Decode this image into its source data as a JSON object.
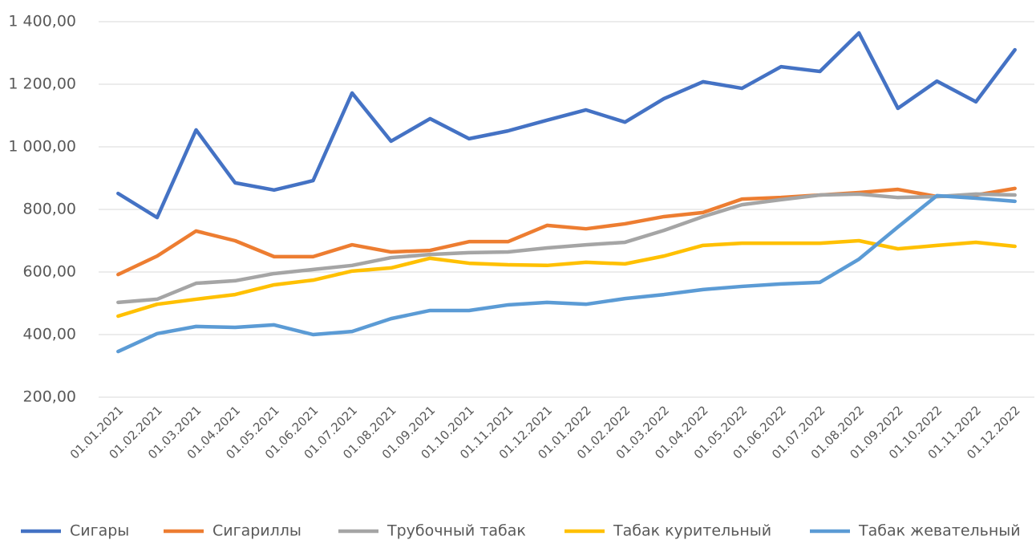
{
  "chart_data": {
    "type": "line",
    "categories": [
      "01.01.2021",
      "01.02.2021",
      "01.03.2021",
      "01.04.2021",
      "01.05.2021",
      "01.06.2021",
      "01.07.2021",
      "01.08.2021",
      "01.09.2021",
      "01.10.2021",
      "01.11.2021",
      "01.12.2021",
      "01.01.2022",
      "01.02.2022",
      "01.03.2022",
      "01.04.2022",
      "01.05.2022",
      "01.06.2022",
      "01.07.2022",
      "01.08.2022",
      "01.09.2022",
      "01.10.2022",
      "01.11.2022",
      "01.12.2022"
    ],
    "series": [
      {
        "name": "Сигары",
        "color": "#4472c4",
        "values": [
          851,
          774,
          1054,
          885,
          862,
          892,
          1172,
          1018,
          1090,
          1026,
          1051,
          1085,
          1118,
          1079,
          1154,
          1208,
          1187,
          1256,
          1241,
          1364,
          1123,
          1210,
          1144,
          1310
        ]
      },
      {
        "name": "Сигариллы",
        "color": "#ed7d31",
        "values": [
          592,
          651,
          731,
          700,
          649,
          649,
          687,
          664,
          669,
          697,
          697,
          749,
          738,
          754,
          777,
          790,
          833,
          838,
          846,
          854,
          864,
          841,
          846,
          867
        ]
      },
      {
        "name": "Трубочный табак",
        "color": "#a5a5a5",
        "values": [
          503,
          513,
          564,
          572,
          595,
          608,
          621,
          646,
          656,
          662,
          664,
          677,
          687,
          695,
          733,
          777,
          815,
          831,
          846,
          849,
          838,
          841,
          849,
          846
        ]
      },
      {
        "name": "Табак курительный",
        "color": "#ffc000",
        "values": [
          459,
          497,
          513,
          528,
          559,
          574,
          603,
          613,
          644,
          628,
          623,
          621,
          631,
          626,
          651,
          685,
          692,
          692,
          692,
          700,
          674,
          685,
          695,
          682
        ]
      },
      {
        "name": "Табак жевательный",
        "color": "#5b9bd5",
        "values": [
          346,
          403,
          426,
          423,
          431,
          400,
          410,
          451,
          477,
          477,
          495,
          503,
          497,
          515,
          528,
          544,
          554,
          562,
          567,
          641,
          744,
          844,
          836,
          826
        ]
      }
    ],
    "ylim": [
      200,
      1400
    ],
    "yticks": [
      {
        "value": 200,
        "label": "200,00"
      },
      {
        "value": 400,
        "label": "400,00"
      },
      {
        "value": 600,
        "label": "600,00"
      },
      {
        "value": 800,
        "label": "800,00"
      },
      {
        "value": 1000,
        "label": "1 000,00"
      },
      {
        "value": 1200,
        "label": "1 200,00"
      },
      {
        "value": 1400,
        "label": "1 400,00"
      }
    ],
    "grid": true,
    "legend": "bottom"
  }
}
